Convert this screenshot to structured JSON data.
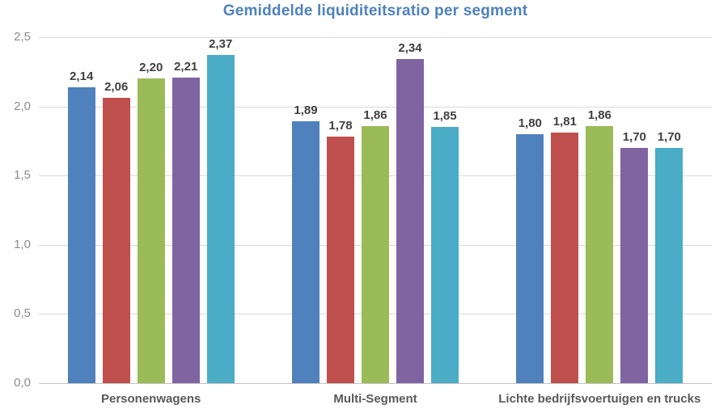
{
  "chart_data": {
    "type": "bar",
    "title": "Gemiddelde liquiditeitsratio per segment",
    "title_color": "#4F81BD",
    "categories": [
      "Personenwagens",
      "Multi-Segment",
      "Lichte bedrijfsvoertuigen en trucks"
    ],
    "series": [
      {
        "name": "series-1-blue",
        "color": "#4F81BD",
        "values": [
          2.14,
          1.89,
          1.8
        ],
        "labels": [
          "2,14",
          "1,89",
          "1,80"
        ]
      },
      {
        "name": "series-2-red",
        "color": "#C0504D",
        "values": [
          2.06,
          1.78,
          1.81
        ],
        "labels": [
          "2,06",
          "1,78",
          "1,81"
        ]
      },
      {
        "name": "series-3-green",
        "color": "#9BBB59",
        "values": [
          2.2,
          1.86,
          1.86
        ],
        "labels": [
          "2,20",
          "1,86",
          "1,86"
        ]
      },
      {
        "name": "series-4-purple",
        "color": "#8064A2",
        "values": [
          2.21,
          2.34,
          1.7
        ],
        "labels": [
          "2,21",
          "2,34",
          "1,70"
        ]
      },
      {
        "name": "series-5-teal",
        "color": "#4BACC6",
        "values": [
          2.37,
          1.85,
          1.7
        ],
        "labels": [
          "2,37",
          "1,85",
          "1,70"
        ]
      }
    ],
    "yticks": [
      {
        "value": 0.0,
        "label": "0,0"
      },
      {
        "value": 0.5,
        "label": "0,5"
      },
      {
        "value": 1.0,
        "label": "1,0"
      },
      {
        "value": 1.5,
        "label": "1,5"
      },
      {
        "value": 2.0,
        "label": "2,0"
      },
      {
        "value": 2.5,
        "label": "2,5"
      }
    ],
    "ylim": [
      0,
      2.5
    ],
    "grid": true,
    "legend": "none",
    "gridline_color": "#D9D9D9",
    "axis_line_color": "#C3C3C3",
    "ytick_label_color": "#8C8C8C",
    "value_label_color": "#404040",
    "category_label_color": "#595959"
  }
}
